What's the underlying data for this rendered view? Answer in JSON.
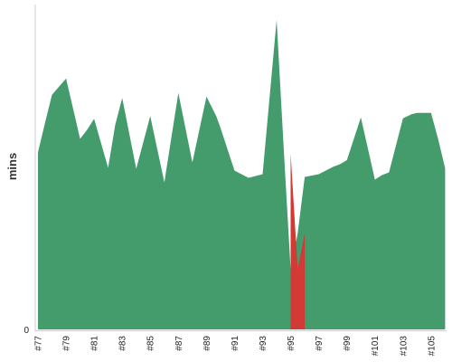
{
  "chart_data": {
    "type": "area",
    "ylabel": "mins",
    "xlabel": "",
    "title": "",
    "y_tick_labels": [
      "0"
    ],
    "ylim": [
      0,
      68
    ],
    "categories": [
      "#77",
      "#78",
      "#79",
      "#80",
      "#81",
      "#82",
      "#83",
      "#84",
      "#85",
      "#86",
      "#87",
      "#88",
      "#89",
      "#90",
      "#91",
      "#92",
      "#93",
      "#94",
      "#95",
      "#96",
      "#97",
      "#98",
      "#99",
      "#100",
      "#101",
      "#102",
      "#103",
      "#104",
      "#105",
      "#106"
    ],
    "x_tick_labels": [
      "#77",
      "#79",
      "#81",
      "#83",
      "#85",
      "#87",
      "#89",
      "#91",
      "#93",
      "#95",
      "#97",
      "#99",
      "#101",
      "#103",
      "#105"
    ],
    "series": [
      {
        "type": "line-points",
        "color": "#449b6c",
        "x": [
          0,
          0.5,
          1,
          2,
          3,
          3.5,
          4,
          5,
          5.5,
          6,
          7,
          8,
          9,
          10,
          11,
          12,
          12.7,
          13,
          14,
          15,
          16,
          17,
          17.5,
          18,
          18.5,
          19,
          20,
          20.5,
          21,
          21.5,
          22,
          23,
          24,
          24.5,
          25,
          26,
          26.6,
          27,
          27.5,
          28,
          28.5,
          29
        ],
        "y": [
          39,
          45.5,
          51.7,
          55.3,
          42,
          44,
          46.4,
          35.6,
          45,
          51,
          35.4,
          47,
          32.4,
          52.1,
          36.8,
          51.3,
          47,
          44.4,
          35,
          33.4,
          34.2,
          68.2,
          40,
          13.2,
          21.2,
          33.6,
          34.2,
          35,
          35.8,
          36.4,
          37.3,
          46.7,
          33,
          34,
          34.6,
          46.5,
          47.4,
          47.7,
          47.7,
          47.7,
          42,
          35.5
        ]
      },
      {
        "type": "polygon-points",
        "color": "#d13a35",
        "x": [
          18,
          18.5,
          19,
          19,
          18
        ],
        "y": [
          38.8,
          13.2,
          21.2,
          0,
          0
        ]
      }
    ]
  }
}
